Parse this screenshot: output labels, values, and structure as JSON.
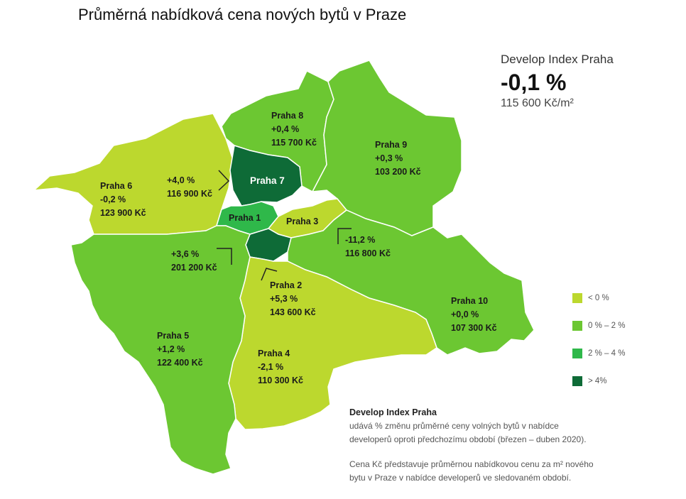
{
  "title": "Průměrná nabídková cena nových bytů v Praze",
  "summary": {
    "label": "Develop Index Praha",
    "change": "-0,1 %",
    "price_html": "115 600 Kč/m²"
  },
  "colors": {
    "lt0": "#bcd82e",
    "p0_2": "#6cc732",
    "p2_4": "#2fb84a",
    "gt4": "#0e6b37"
  },
  "districts": {
    "praha1": {
      "name": "Praha 1"
    },
    "praha2": {
      "name": "Praha 2",
      "change": "+5,3 %",
      "price": "143 600 Kč"
    },
    "praha3": {
      "name": "Praha 3"
    },
    "praha3_stats": {
      "change": "-11,2 %",
      "price": "116 800 Kč"
    },
    "praha4": {
      "name": "Praha 4",
      "change": "-2,1 %",
      "price": "110 300 Kč"
    },
    "praha5": {
      "name": "Praha 5",
      "change": "+1,2 %",
      "price": "122 400 Kč"
    },
    "praha1_stats": {
      "change": "+3,6 %",
      "price": "201 200 Kč"
    },
    "praha6": {
      "name": "Praha 6",
      "change": "-0,2 %",
      "price": "123 900 Kč"
    },
    "praha7": {
      "name": "Praha 7"
    },
    "praha7_stats": {
      "change": "+4,0 %",
      "price": "116 900 Kč"
    },
    "praha8": {
      "name": "Praha 8",
      "change": "+0,4 %",
      "price": "115 700 Kč"
    },
    "praha9": {
      "name": "Praha 9",
      "change": "+0,3 %",
      "price": "103 200 Kč"
    },
    "praha10": {
      "name": "Praha 10",
      "change": "+0,0 %",
      "price": "107 300 Kč"
    }
  },
  "legend": [
    {
      "label": "< 0 %",
      "color": "#bcd82e"
    },
    {
      "label": "0 % – 2 %",
      "color": "#6cc732"
    },
    {
      "label": "2 % – 4 %",
      "color": "#2fb84a"
    },
    {
      "label": "> 4%",
      "color": "#0e6b37"
    }
  ],
  "note": {
    "heading": "Develop Index Praha",
    "line1": "udává % změnu průměrné ceny volných bytů v nabídce",
    "line2": "developerů oproti předchozímu období (březen – duben 2020).",
    "line3": "Cena Kč představuje průměrnou nabídkovou cenu za m² nového",
    "line4": "bytu v Praze v nabídce developerů ve sledovaném období."
  }
}
